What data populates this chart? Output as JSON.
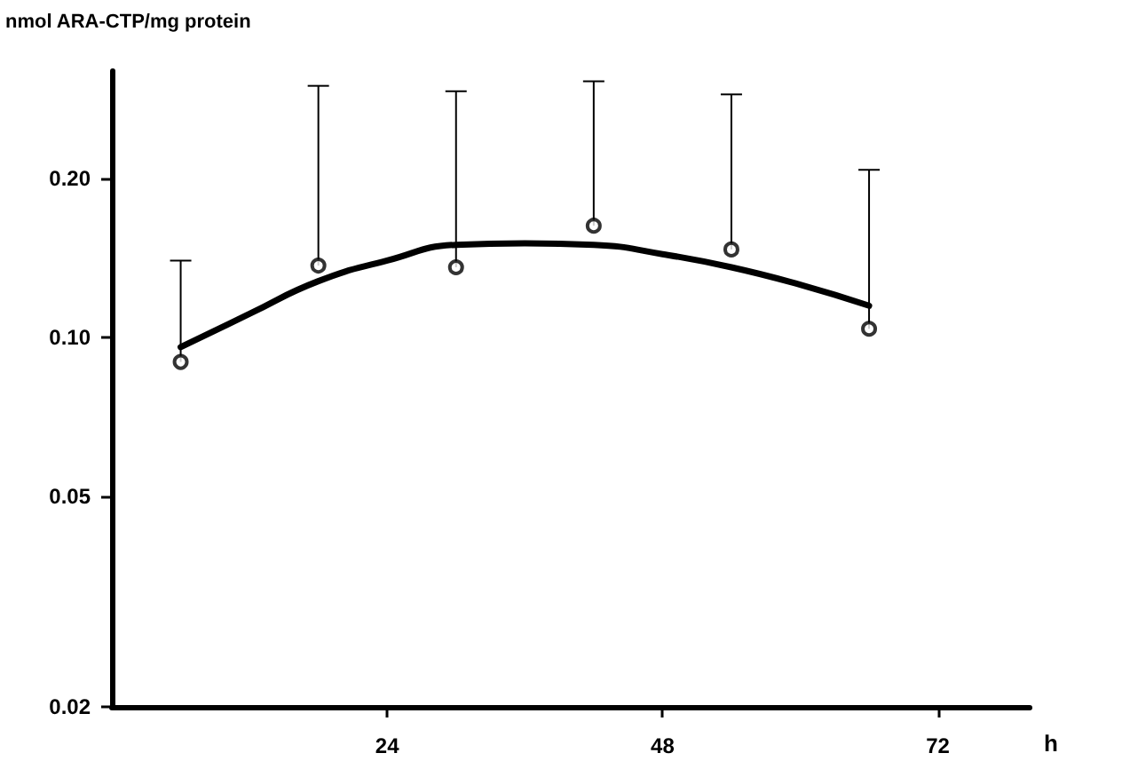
{
  "chart_data": {
    "type": "scatter",
    "ylabel": "nmol ARA-CTP/mg protein",
    "xlabel": "h",
    "xlim": [
      0,
      80
    ],
    "xticks": [
      24,
      48,
      72
    ],
    "ylim": [
      0.02,
      0.32
    ],
    "yticks": [
      0.02,
      0.05,
      {
        "value": 0.1,
        "label": "0.10"
      },
      {
        "value": 0.2,
        "label": "0.20"
      }
    ],
    "log": "y",
    "grid": false,
    "series": [
      {
        "color": "#000000",
        "marker": "circle",
        "x": [
          6,
          18,
          30,
          42,
          54,
          66
        ],
        "values": [
          0.09,
          0.137,
          0.136,
          0.163,
          0.147,
          0.104
        ],
        "errors": [
          [
            0.09,
            0.14
          ],
          [
            0.137,
            0.3
          ],
          [
            0.136,
            0.293
          ],
          [
            0.163,
            0.306
          ],
          [
            0.147,
            0.289
          ],
          [
            0.104,
            0.208
          ]
        ]
      },
      {
        "type": "line",
        "color": "#000000",
        "marker": "none",
        "line_style": "solid",
        "x": [
          6,
          12,
          18,
          24,
          30,
          36,
          42,
          48,
          54,
          60,
          66
        ],
        "values": [
          0.096,
          0.111,
          0.128,
          0.14,
          0.15,
          0.151,
          0.15,
          0.144,
          0.136,
          0.126,
          0.115
        ]
      }
    ]
  }
}
